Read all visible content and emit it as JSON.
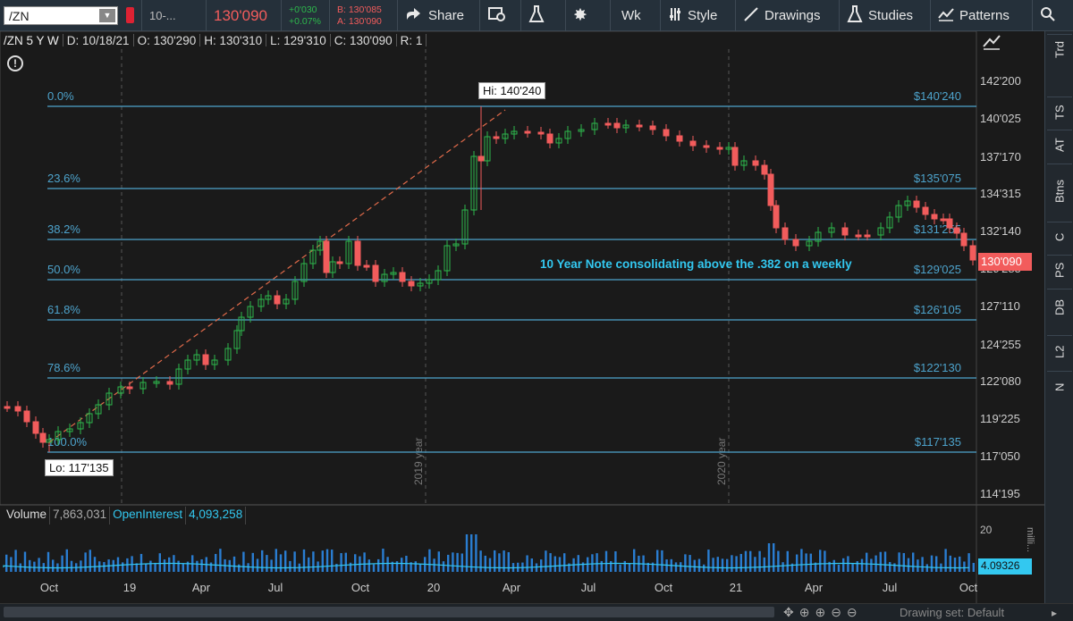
{
  "toolbar": {
    "symbol": "/ZN",
    "symbol_desc": "10-...",
    "last": "130'090",
    "change": "+0'030",
    "change_pct": "+0.07%",
    "bid": "B: 130'085",
    "ask": "A: 130'090",
    "share_label": "Share",
    "aggregation": "Wk",
    "style_label": "Style",
    "drawings_label": "Drawings",
    "studies_label": "Studies",
    "patterns_label": "Patterns"
  },
  "info": {
    "title": "/ZN 5 Y W",
    "date": "D: 10/18/21",
    "open": "O: 130'290",
    "high": "H: 130'310",
    "low": "L: 129'310",
    "close": "C: 130'090",
    "range": "R: 1"
  },
  "price_axis": [
    "142'200",
    "140'025",
    "137'170",
    "134'315",
    "132'140",
    "129'285",
    "127'110",
    "124'255",
    "122'080",
    "119'225",
    "117'050",
    "114'195"
  ],
  "current_price_tag": "130'090",
  "fib_levels": [
    {
      "pct": "0.0%",
      "price": "$140'240"
    },
    {
      "pct": "23.6%",
      "price": "$135'075"
    },
    {
      "pct": "38.2%",
      "price": "$131'255"
    },
    {
      "pct": "50.0%",
      "price": "$129'025"
    },
    {
      "pct": "61.8%",
      "price": "$126'105"
    },
    {
      "pct": "78.6%",
      "price": "$122'130"
    },
    {
      "pct": "100.0%",
      "price": "$117'135"
    }
  ],
  "hi_label": "Hi: 140'240",
  "lo_label": "Lo: 117'135",
  "annotation": "10 Year Note consolidating above the .382 on a weekly",
  "year_markers": [
    "2019 year",
    "2020 year"
  ],
  "time_axis": [
    "Oct",
    "19",
    "Apr",
    "Jul",
    "Oct",
    "20",
    "Apr",
    "Jul",
    "Oct",
    "21",
    "Apr",
    "Jul",
    "Oct"
  ],
  "volume": {
    "label": "Volume",
    "value": "7,863,031",
    "oi_label": "OpenInterest",
    "oi_value": "4,093,258",
    "axis_top": "20",
    "axis_unit": "milli...",
    "oi_tag": "4.09326"
  },
  "right_tabs": [
    "Trd",
    "TS",
    "AT",
    "Btns",
    "C",
    "PS",
    "DB",
    "L2",
    "N"
  ],
  "drawing_set": "Drawing set: Default",
  "colors": {
    "up": "#2db84c",
    "down": "#f25c5c",
    "fib": "#4da3cc",
    "annotation": "#33c8f0",
    "volume": "#2a7dd1"
  }
}
